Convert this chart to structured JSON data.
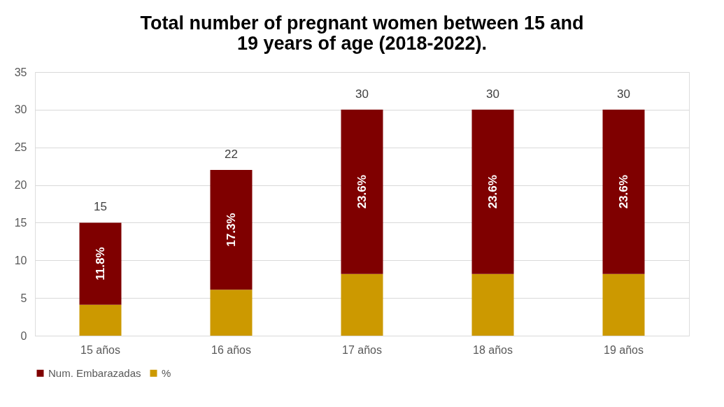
{
  "chart_data": {
    "type": "bar",
    "title": "Total number of pregnant women between 15 and 19 years of age (2018-2022).",
    "categories": [
      "15 años",
      "16 años",
      "17 años",
      "18 años",
      "19 años"
    ],
    "stacked": true,
    "series": [
      {
        "name": "%",
        "color": "#cc9900",
        "values": [
          4.1,
          6.1,
          8.2,
          8.2,
          8.2
        ]
      },
      {
        "name": "Num. Embarazadas",
        "color": "#7f0000",
        "values": [
          10.9,
          15.9,
          21.8,
          21.8,
          21.8
        ]
      }
    ],
    "annotations": [
      "11.8%",
      "17.3%",
      "23.6%",
      "23.6%",
      "23.6%"
    ],
    "totals": [
      "15",
      "22",
      "30",
      "30",
      "30"
    ],
    "ylim": [
      0,
      35
    ],
    "yticks": [
      0,
      5,
      10,
      15,
      20,
      25,
      30,
      35
    ],
    "grid": "y",
    "legend": "bottom"
  }
}
